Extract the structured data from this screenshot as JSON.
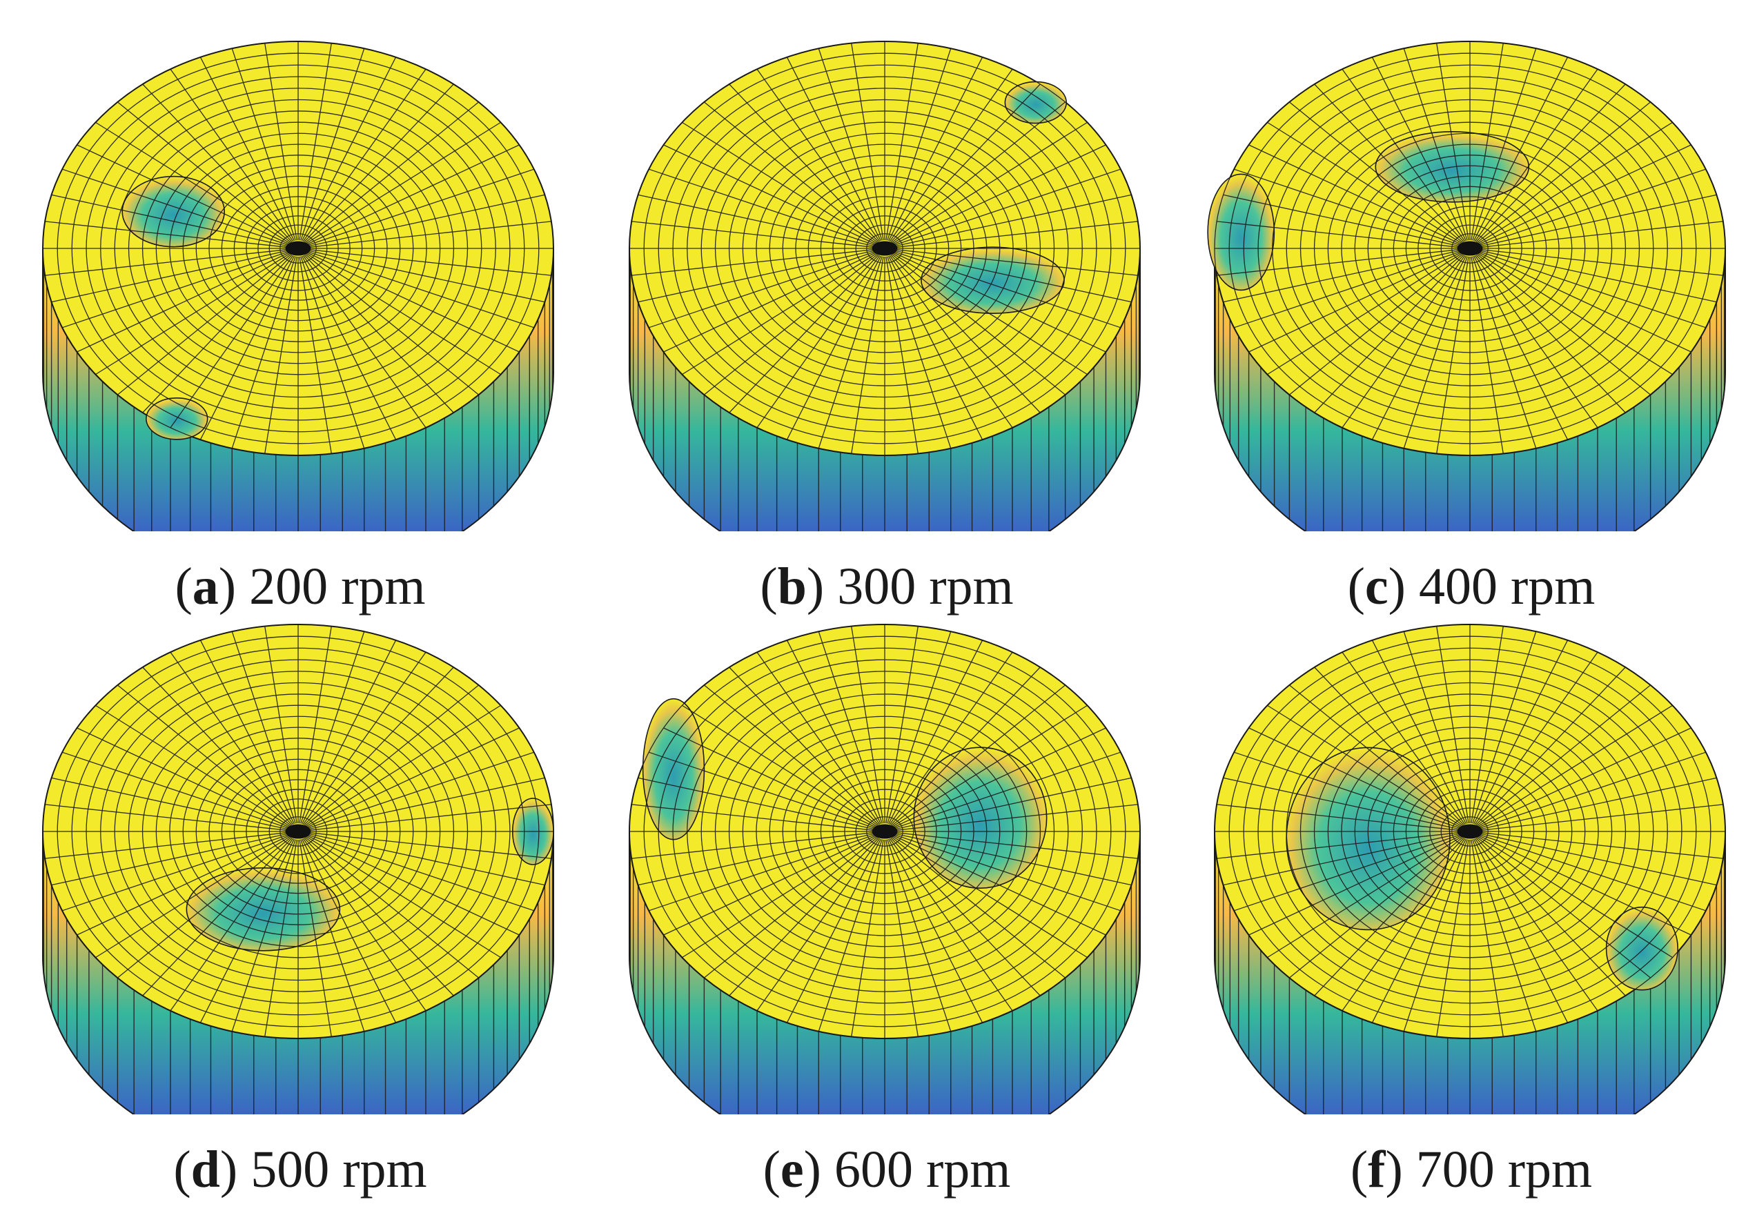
{
  "figure": {
    "panels": [
      {
        "letter": "a",
        "speed": "200 rpm",
        "defect": "mid-left crater with rim notch at front-left",
        "colors_visible": [
          "#f2ea2a",
          "#2fb5a5",
          "#3f44d8"
        ]
      },
      {
        "letter": "b",
        "speed": "300 rpm",
        "defect": "right crater, torn edge at back-right",
        "colors_visible": [
          "#f2ea2a",
          "#2fb5a5",
          "#3f44d8"
        ]
      },
      {
        "letter": "c",
        "speed": "400 rpm",
        "defect": "crater behind center, wall collapse on left",
        "colors_visible": [
          "#f2ea2a",
          "#2fb5a5",
          "#3f44d8"
        ]
      },
      {
        "letter": "d",
        "speed": "500 rpm",
        "defect": "front crater, gap on right rim",
        "colors_visible": [
          "#f2ea2a",
          "#2fb5a5",
          "#3f44d8"
        ]
      },
      {
        "letter": "e",
        "speed": "600 rpm",
        "defect": "large crater right of center, torn rim on left",
        "colors_visible": [
          "#f2ea2a",
          "#2fb5a5",
          "#3f44d8"
        ]
      },
      {
        "letter": "f",
        "speed": "700 rpm",
        "defect": "deep crater left of center, broken rim front-right",
        "colors_visible": [
          "#f2ea2a",
          "#2fb5a5",
          "#3f44d8"
        ]
      }
    ],
    "colormap": {
      "top": "#f2ea2a",
      "mid": "#35b79c",
      "bottom": "#3e3ed8",
      "wireframe": "#1a1a1a"
    }
  }
}
